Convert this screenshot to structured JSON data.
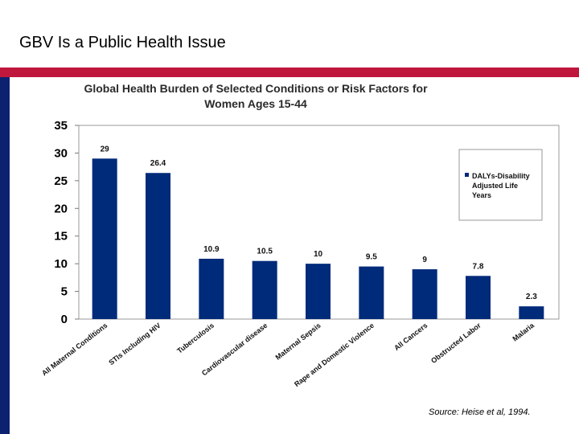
{
  "slide": {
    "title": "GBV Is a Public Health Issue",
    "source": "Source: Heise et al, 1994."
  },
  "colors": {
    "accent_red": "#c0173d",
    "accent_navy": "#0c2170",
    "bar": "#002a7a"
  },
  "chart_data": {
    "type": "bar",
    "title_lines": [
      "Global Health Burden of Selected Conditions or Risk Factors for",
      "Women Ages 15-44"
    ],
    "categories": [
      "All Maternal Conditions",
      "STIs Including HIV",
      "Tuberculosis",
      "Cardiovascular disease",
      "Maternal Sepsis",
      "Rape and Domestic Violence",
      "All Cancers",
      "Obstructed Labor",
      "Malaria"
    ],
    "series": [
      {
        "name": "DALYs-Disability Adjusted Life Years",
        "legend_lines": [
          "DALYs-Disability",
          "Adjusted Life",
          "Years"
        ],
        "values": [
          29,
          26.4,
          10.9,
          10.5,
          10,
          9.5,
          9,
          7.8,
          2.3
        ],
        "value_labels": [
          "29",
          "26.4",
          "10.9",
          "10.5",
          "10",
          "9.5",
          "9",
          "7.8",
          "2.3"
        ]
      }
    ],
    "ylim": [
      0,
      35
    ],
    "yticks": [
      0,
      5,
      10,
      15,
      20,
      25,
      30,
      35
    ],
    "xlabel": "",
    "ylabel": "",
    "grid": false,
    "legend_position": "top-right"
  }
}
